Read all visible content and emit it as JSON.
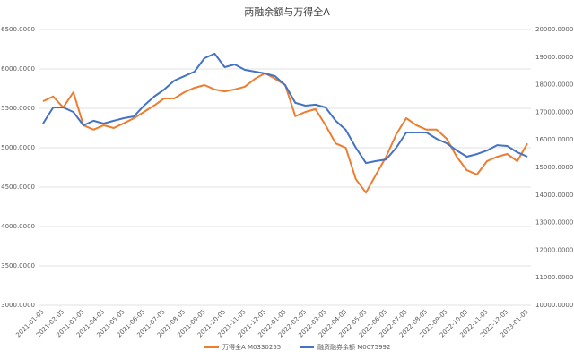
{
  "chart_data": {
    "type": "line",
    "title": "两融余额与万得全A",
    "categories": [
      "2021-01-05",
      null,
      "2021-02-05",
      null,
      "2021-03-05",
      null,
      "2021-04-05",
      null,
      "2021-05-05",
      null,
      "2021-06-05",
      null,
      "2021-07-05",
      null,
      "2021-08-05",
      null,
      "2021-09-05",
      null,
      "2021-10-05",
      null,
      "2021-11-05",
      null,
      "2021-12-05",
      null,
      "2022-01-05",
      null,
      "2022-02-05",
      null,
      "2022-03-05",
      null,
      "2022-04-05",
      null,
      "2022-05-05",
      null,
      "2022-06-05",
      null,
      "2022-07-05",
      null,
      "2022-08-05",
      null,
      "2022-09-05",
      null,
      "2022-10-05",
      null,
      "2022-11-05",
      null,
      "2022-12-05",
      null,
      "2023-01-05"
    ],
    "series": [
      {
        "name": "万得全A M0330255",
        "color": "#ed7d31",
        "axis": "y",
        "values": [
          5590,
          5650,
          5510,
          5705,
          5285,
          5230,
          5285,
          5250,
          5310,
          5375,
          5455,
          5535,
          5625,
          5625,
          5705,
          5760,
          5795,
          5740,
          5715,
          5740,
          5775,
          5875,
          5945,
          5875,
          5795,
          5400,
          5455,
          5490,
          5285,
          5055,
          5000,
          4600,
          4430,
          4660,
          4885,
          5170,
          5375,
          5285,
          5230,
          5230,
          5115,
          4885,
          4715,
          4660,
          4830,
          4885,
          4920,
          4830,
          5055
        ]
      },
      {
        "name": "融资融券余额 M0075992",
        "color": "#4472c4",
        "axis": "y2",
        "values": [
          16590,
          17175,
          17175,
          17010,
          16525,
          16690,
          16590,
          16690,
          16785,
          16850,
          17240,
          17565,
          17825,
          18150,
          18310,
          18475,
          18960,
          19125,
          18635,
          18735,
          18540,
          18475,
          18410,
          18310,
          17985,
          17340,
          17240,
          17275,
          17175,
          16690,
          16365,
          15715,
          15160,
          15230,
          15290,
          15715,
          16265,
          16265,
          16265,
          16040,
          15875,
          15615,
          15390,
          15485,
          15615,
          15810,
          15780,
          15550,
          15390
        ]
      }
    ],
    "ylim": [
      3000,
      6500
    ],
    "yticks": [
      {
        "value": 3000,
        "label": "3000.0000"
      },
      {
        "value": 3500,
        "label": "3500.0000"
      },
      {
        "value": 4000,
        "label": "4000.0000"
      },
      {
        "value": 4500,
        "label": "4500.0000"
      },
      {
        "value": 5000,
        "label": "5000.0000"
      },
      {
        "value": 5500,
        "label": "5500.0000"
      },
      {
        "value": 6000,
        "label": "6000.0000"
      },
      {
        "value": 6500,
        "label": "6500.0000"
      }
    ],
    "y2lim": [
      10000,
      20000
    ],
    "y2ticks": [
      {
        "value": 10000,
        "label": "10000.0000"
      },
      {
        "value": 11000,
        "label": "11000.0000"
      },
      {
        "value": 12000,
        "label": "12000.0000"
      },
      {
        "value": 13000,
        "label": "13000.0000"
      },
      {
        "value": 14000,
        "label": "14000.0000"
      },
      {
        "value": 15000,
        "label": "15000.0000"
      },
      {
        "value": 16000,
        "label": "16000.0000"
      },
      {
        "value": 17000,
        "label": "17000.0000"
      },
      {
        "value": 18000,
        "label": "18000.0000"
      },
      {
        "value": 19000,
        "label": "19000.0000"
      },
      {
        "value": 20000,
        "label": "20000.0000"
      }
    ],
    "grid": true,
    "legend": "bottom"
  }
}
